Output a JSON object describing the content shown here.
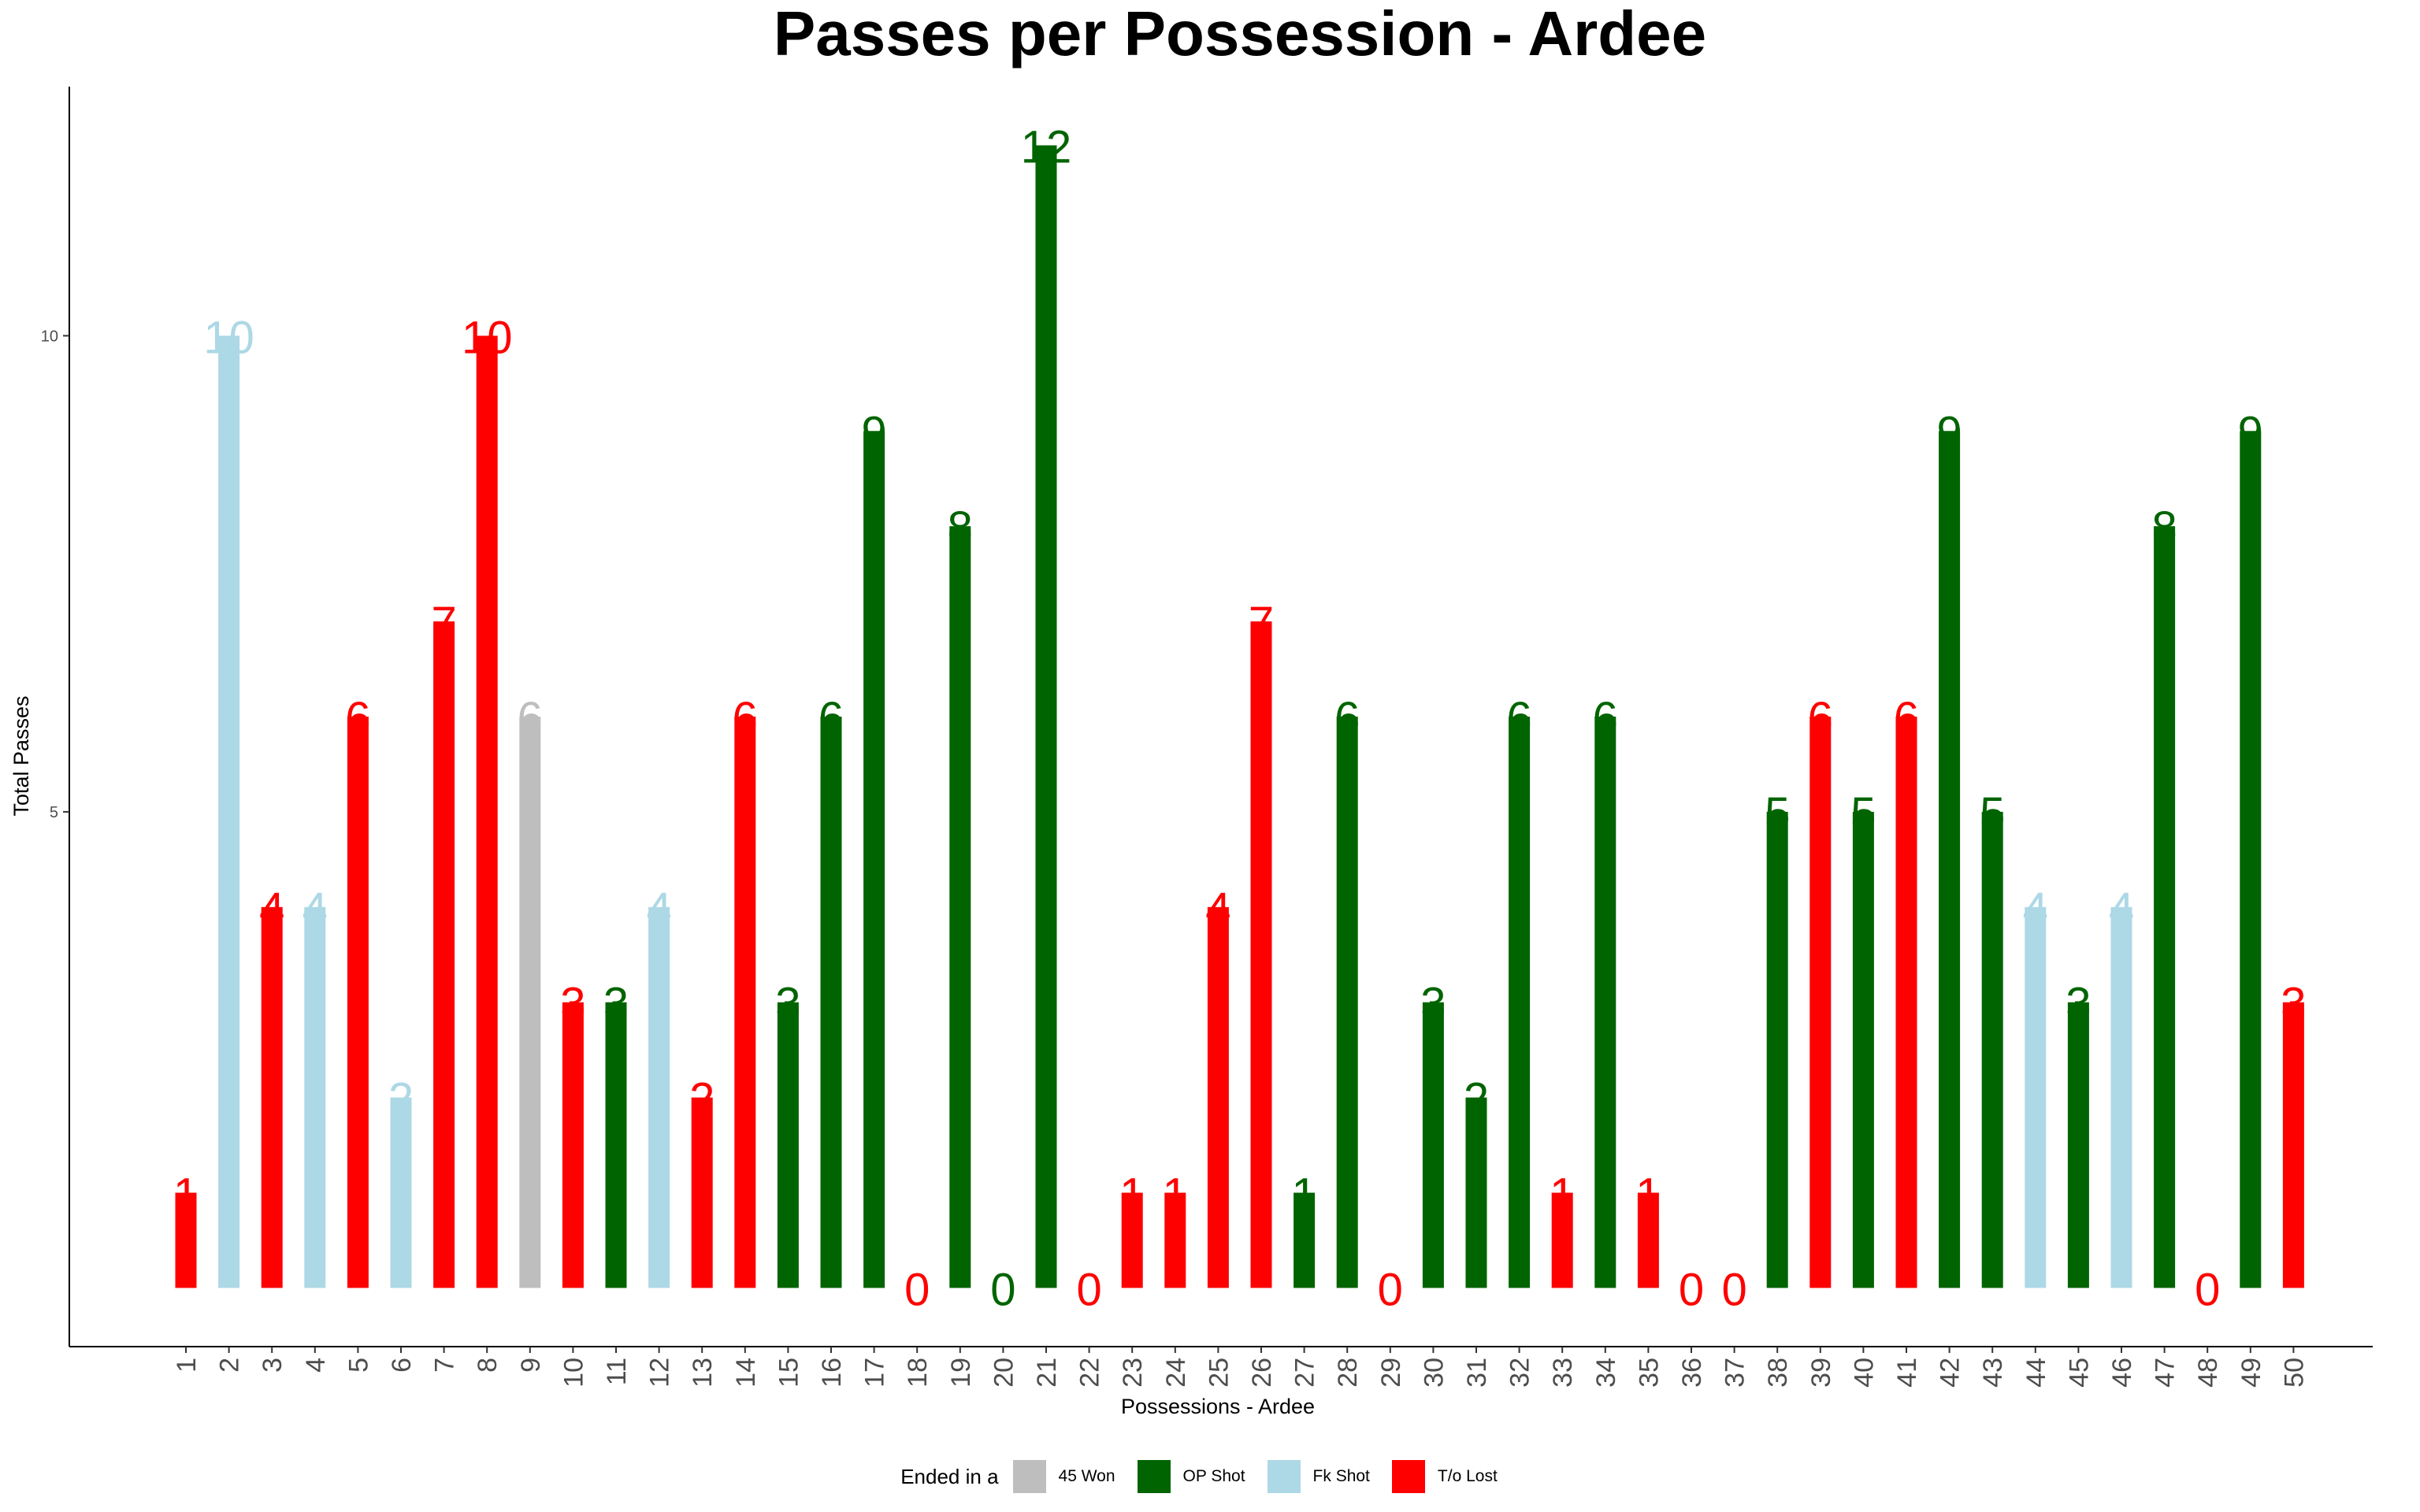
{
  "chart_data": {
    "type": "bar",
    "title": "Passes per Possession - Ardee",
    "xlabel": "Possessions - Ardee",
    "ylabel": "Total Passes",
    "ylim": [
      -0.6,
      12.6
    ],
    "yticks": [
      5,
      10
    ],
    "categories": [
      "1",
      "2",
      "3",
      "4",
      "5",
      "6",
      "7",
      "8",
      "9",
      "10",
      "11",
      "12",
      "13",
      "14",
      "15",
      "16",
      "17",
      "18",
      "19",
      "20",
      "21",
      "22",
      "23",
      "24",
      "25",
      "26",
      "27",
      "28",
      "29",
      "30",
      "31",
      "32",
      "33",
      "34",
      "35",
      "36",
      "37",
      "38",
      "39",
      "40",
      "41",
      "42",
      "43",
      "44",
      "45",
      "46",
      "47",
      "48",
      "49",
      "50"
    ],
    "values": [
      1,
      10,
      4,
      4,
      6,
      2,
      7,
      10,
      6,
      3,
      3,
      4,
      2,
      6,
      3,
      6,
      9,
      0,
      8,
      0,
      12,
      0,
      1,
      1,
      4,
      7,
      1,
      6,
      0,
      3,
      2,
      6,
      1,
      6,
      1,
      0,
      0,
      5,
      6,
      5,
      6,
      9,
      5,
      4,
      3,
      4,
      8,
      0,
      9,
      3
    ],
    "outcomes": [
      "T/o Lost",
      "Fk Shot",
      "T/o Lost",
      "Fk Shot",
      "T/o Lost",
      "Fk Shot",
      "T/o Lost",
      "T/o Lost",
      "45 Won",
      "T/o Lost",
      "OP Shot",
      "Fk Shot",
      "T/o Lost",
      "T/o Lost",
      "OP Shot",
      "OP Shot",
      "OP Shot",
      "T/o Lost",
      "OP Shot",
      "OP Shot",
      "OP Shot",
      "T/o Lost",
      "T/o Lost",
      "T/o Lost",
      "T/o Lost",
      "T/o Lost",
      "OP Shot",
      "OP Shot",
      "T/o Lost",
      "OP Shot",
      "OP Shot",
      "OP Shot",
      "T/o Lost",
      "OP Shot",
      "T/o Lost",
      "T/o Lost",
      "T/o Lost",
      "OP Shot",
      "T/o Lost",
      "OP Shot",
      "T/o Lost",
      "OP Shot",
      "OP Shot",
      "Fk Shot",
      "OP Shot",
      "Fk Shot",
      "OP Shot",
      "T/o Lost",
      "OP Shot",
      "T/o Lost"
    ],
    "legend": {
      "title": "Ended in a",
      "position": "bottom",
      "items": [
        {
          "name": "45 Won",
          "color": "#BEBEBE"
        },
        {
          "name": "OP Shot",
          "color": "#006400"
        },
        {
          "name": "Fk Shot",
          "color": "#ADD8E6"
        },
        {
          "name": "T/o Lost",
          "color": "#FF0000"
        }
      ]
    },
    "grid": false
  }
}
